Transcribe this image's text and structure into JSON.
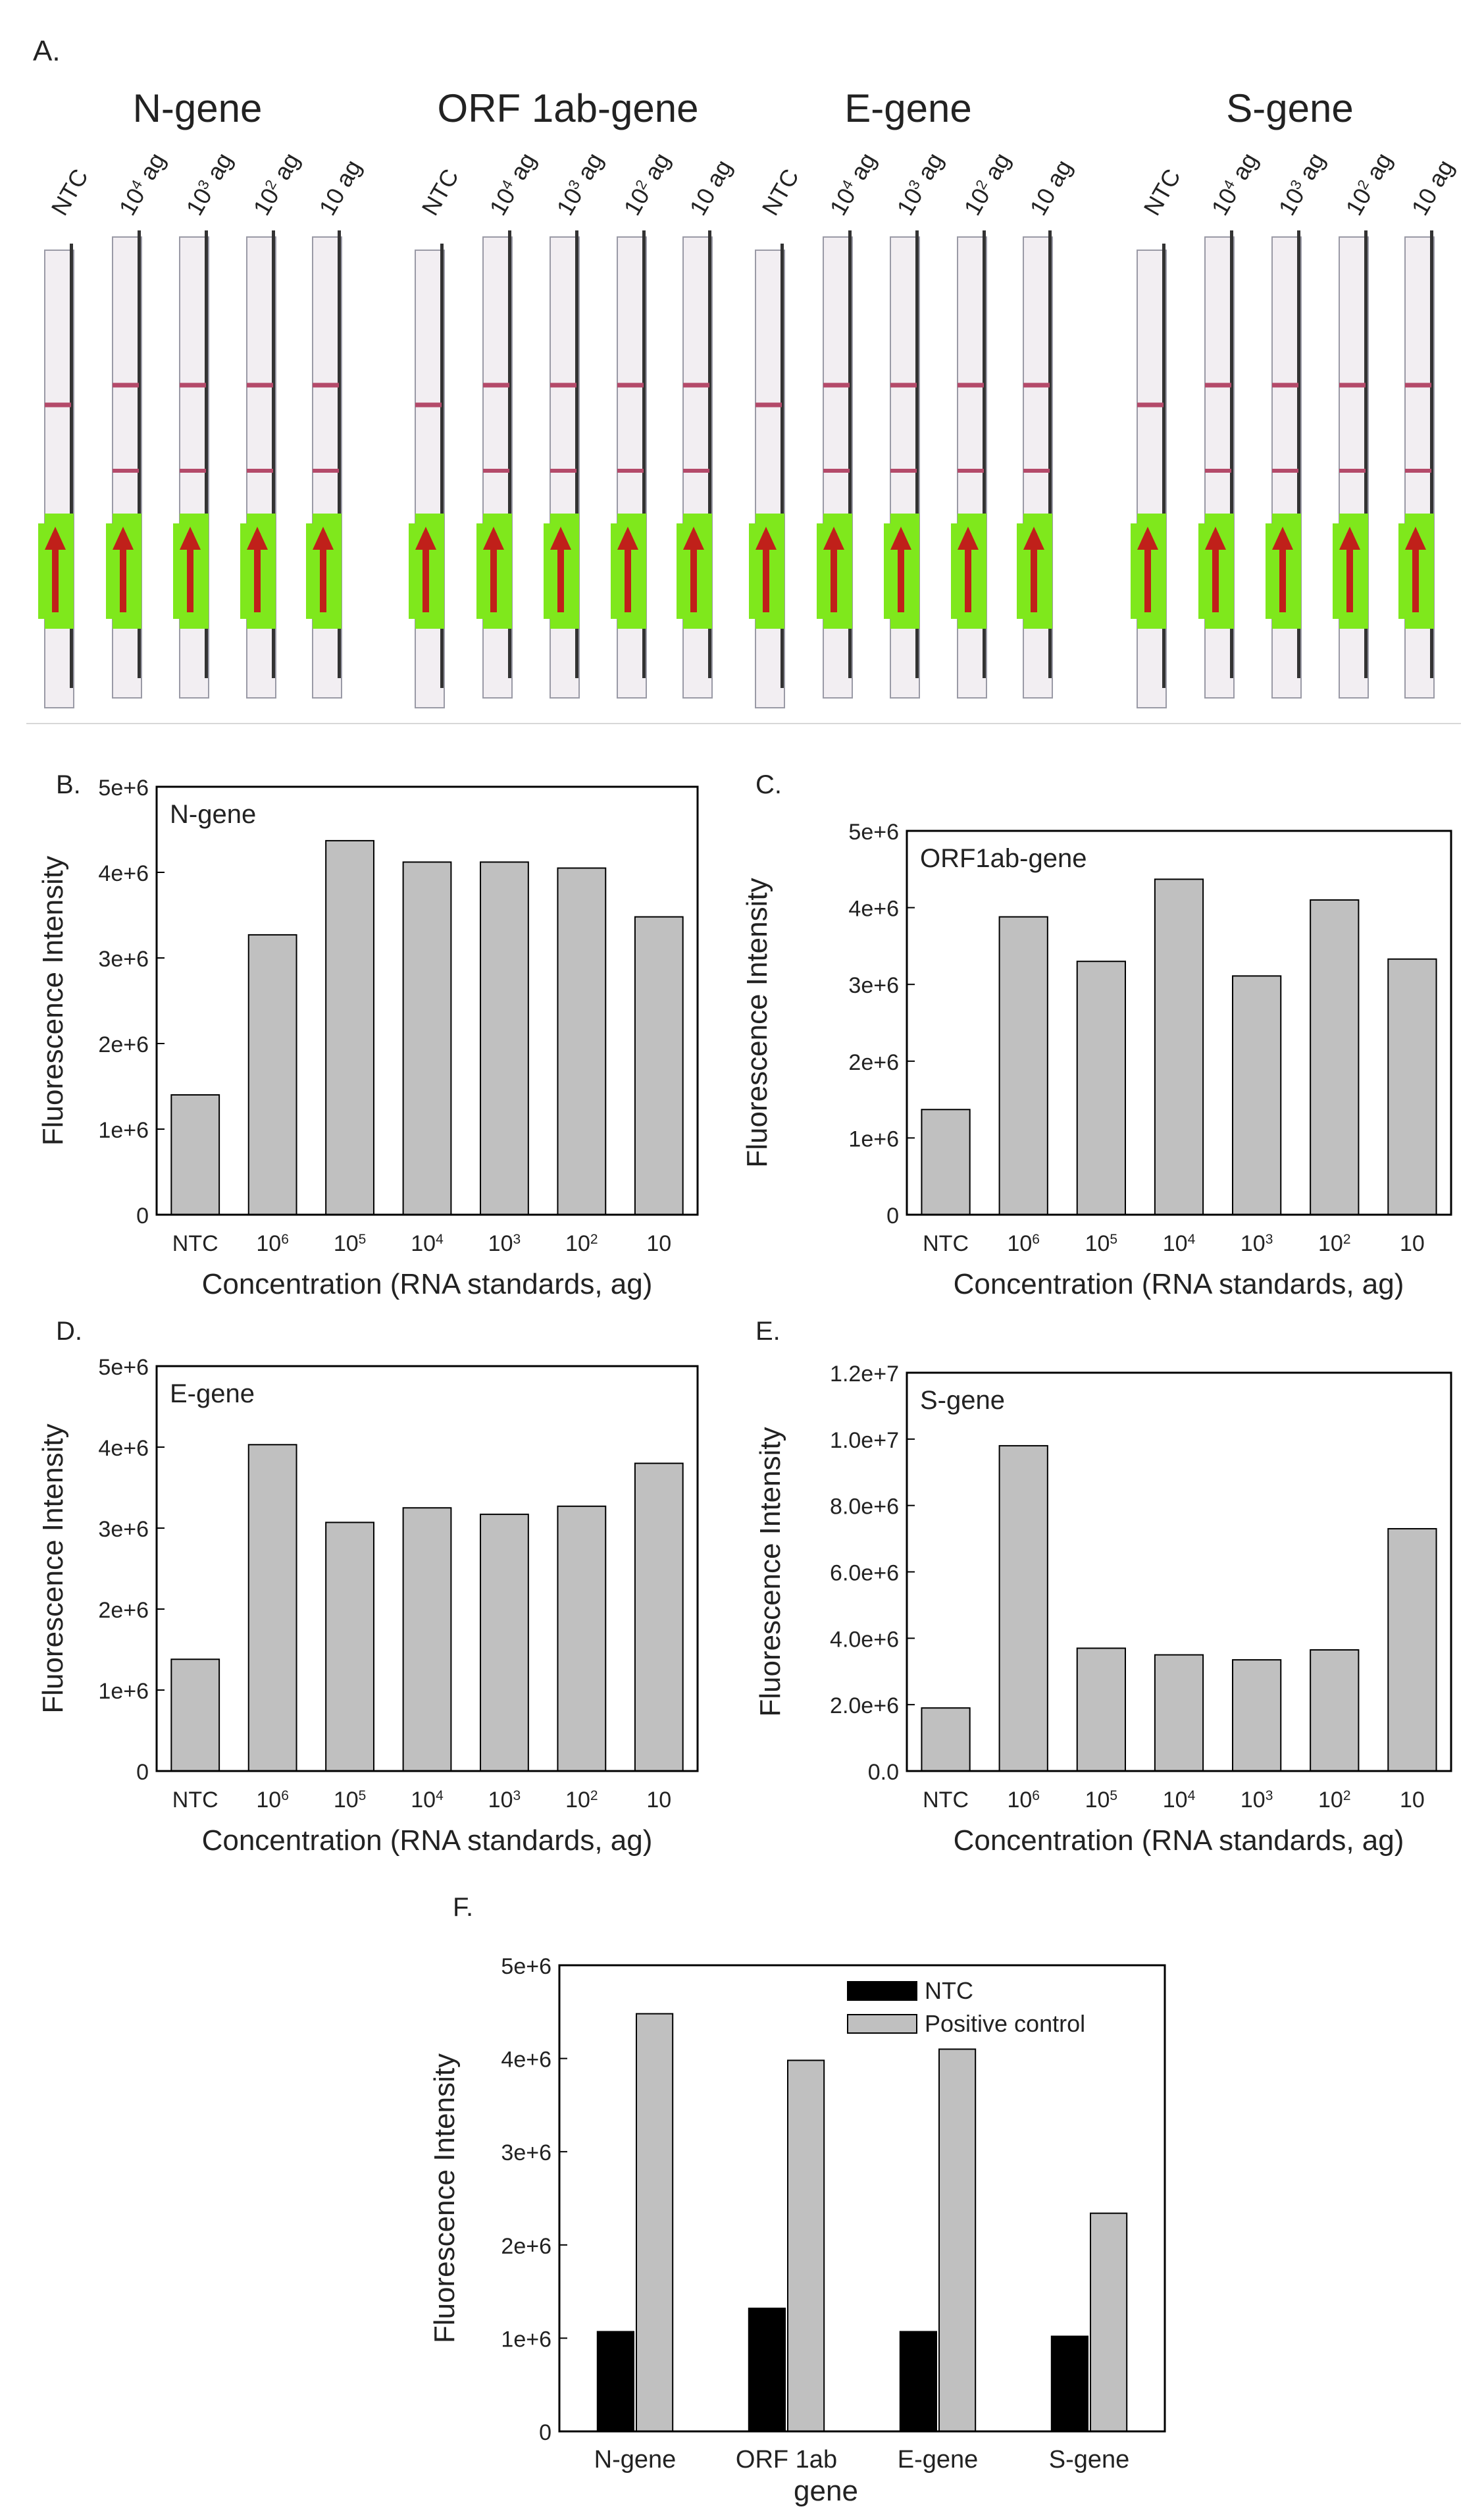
{
  "panel_labels": {
    "a": "A.",
    "b": "B.",
    "c": "C.",
    "d": "D.",
    "e": "E.",
    "f": "F."
  },
  "strips_panel": {
    "groups": [
      {
        "title": "N-gene",
        "lanes": [
          {
            "base": "NTC",
            "exp": ""
          },
          {
            "base": "10",
            "exp": "4",
            "unit": " ag"
          },
          {
            "base": "10",
            "exp": "3",
            "unit": " ag"
          },
          {
            "base": "10",
            "exp": "2",
            "unit": " ag"
          },
          {
            "base": "10 ag",
            "exp": ""
          }
        ]
      },
      {
        "title": "ORF 1ab-gene",
        "lanes": [
          {
            "base": "NTC",
            "exp": ""
          },
          {
            "base": "10",
            "exp": "4",
            "unit": " ag"
          },
          {
            "base": "10",
            "exp": "3",
            "unit": " ag"
          },
          {
            "base": "10",
            "exp": "2",
            "unit": " ag"
          },
          {
            "base": "10 ag",
            "exp": ""
          }
        ]
      },
      {
        "title": "E-gene",
        "lanes": [
          {
            "base": "NTC",
            "exp": ""
          },
          {
            "base": "10",
            "exp": "4",
            "unit": " ag"
          },
          {
            "base": "10",
            "exp": "3",
            "unit": " ag"
          },
          {
            "base": "10",
            "exp": "2",
            "unit": " ag"
          },
          {
            "base": "10 ag",
            "exp": ""
          }
        ]
      },
      {
        "title": "S-gene",
        "lanes": [
          {
            "base": "NTC",
            "exp": ""
          },
          {
            "base": "10",
            "exp": "4",
            "unit": " ag"
          },
          {
            "base": "10",
            "exp": "3",
            "unit": " ag"
          },
          {
            "base": "10",
            "exp": "2",
            "unit": " ag"
          },
          {
            "base": "10 ag",
            "exp": ""
          }
        ]
      }
    ]
  },
  "colors": {
    "bar": "#c0c0c0",
    "ntc_bar": "#000000",
    "strip_line": "#b44a6a",
    "arrow": "#c0201a",
    "green_zone": "#7fe81c"
  },
  "chart_data": [
    {
      "id": "B",
      "type": "bar",
      "title": "N-gene",
      "categories": [
        {
          "base": "NTC",
          "exp": ""
        },
        {
          "base": "10",
          "exp": "6"
        },
        {
          "base": "10",
          "exp": "5"
        },
        {
          "base": "10",
          "exp": "4"
        },
        {
          "base": "10",
          "exp": "3"
        },
        {
          "base": "10",
          "exp": "2"
        },
        {
          "base": "10",
          "exp": ""
        }
      ],
      "values": [
        1400000,
        3270000,
        4370000,
        4120000,
        4120000,
        4050000,
        3480000
      ],
      "xlabel": "Concentration (RNA standards, ag)",
      "ylabel": "Fluorescence Intensity",
      "ylim": [
        0,
        5000000
      ],
      "yticks": [
        {
          "v": 0,
          "label": "0"
        },
        {
          "v": 1000000,
          "label": "1e+6"
        },
        {
          "v": 2000000,
          "label": "2e+6"
        },
        {
          "v": 3000000,
          "label": "3e+6"
        },
        {
          "v": 4000000,
          "label": "4e+6"
        },
        {
          "v": 5000000,
          "label": "5e+6"
        }
      ]
    },
    {
      "id": "C",
      "type": "bar",
      "title": "ORF1ab-gene",
      "categories": [
        {
          "base": "NTC",
          "exp": ""
        },
        {
          "base": "10",
          "exp": "6"
        },
        {
          "base": "10",
          "exp": "5"
        },
        {
          "base": "10",
          "exp": "4"
        },
        {
          "base": "10",
          "exp": "3"
        },
        {
          "base": "10",
          "exp": "2"
        },
        {
          "base": "10",
          "exp": ""
        }
      ],
      "values": [
        1370000,
        3880000,
        3300000,
        4370000,
        3110000,
        4100000,
        3330000
      ],
      "xlabel": "Concentration (RNA standards, ag)",
      "ylabel": "Fluorescence Intensity",
      "ylim": [
        0,
        5000000
      ],
      "yticks": [
        {
          "v": 0,
          "label": "0"
        },
        {
          "v": 1000000,
          "label": "1e+6"
        },
        {
          "v": 2000000,
          "label": "2e+6"
        },
        {
          "v": 3000000,
          "label": "3e+6"
        },
        {
          "v": 4000000,
          "label": "4e+6"
        },
        {
          "v": 5000000,
          "label": "5e+6"
        }
      ]
    },
    {
      "id": "D",
      "type": "bar",
      "title": "E-gene",
      "categories": [
        {
          "base": "NTC",
          "exp": ""
        },
        {
          "base": "10",
          "exp": "6"
        },
        {
          "base": "10",
          "exp": "5"
        },
        {
          "base": "10",
          "exp": "4"
        },
        {
          "base": "10",
          "exp": "3"
        },
        {
          "base": "10",
          "exp": "2"
        },
        {
          "base": "10",
          "exp": ""
        }
      ],
      "values": [
        1380000,
        4030000,
        3070000,
        3250000,
        3170000,
        3270000,
        3800000
      ],
      "xlabel": "Concentration (RNA standards, ag)",
      "ylabel": "Fluorescence Intensity",
      "ylim": [
        0,
        5000000
      ],
      "yticks": [
        {
          "v": 0,
          "label": "0"
        },
        {
          "v": 1000000,
          "label": "1e+6"
        },
        {
          "v": 2000000,
          "label": "2e+6"
        },
        {
          "v": 3000000,
          "label": "3e+6"
        },
        {
          "v": 4000000,
          "label": "4e+6"
        },
        {
          "v": 5000000,
          "label": "5e+6"
        }
      ]
    },
    {
      "id": "E",
      "type": "bar",
      "title": "S-gene",
      "categories": [
        {
          "base": "NTC",
          "exp": ""
        },
        {
          "base": "10",
          "exp": "6"
        },
        {
          "base": "10",
          "exp": "5"
        },
        {
          "base": "10",
          "exp": "4"
        },
        {
          "base": "10",
          "exp": "3"
        },
        {
          "base": "10",
          "exp": "2"
        },
        {
          "base": "10",
          "exp": ""
        }
      ],
      "values": [
        1900000,
        9800000,
        3700000,
        3500000,
        3350000,
        3650000,
        7300000
      ],
      "xlabel": "Concentration (RNA standards, ag)",
      "ylabel": "Fluorescence Intensity",
      "ylim": [
        0,
        12000000
      ],
      "yticks": [
        {
          "v": 0,
          "label": "0.0"
        },
        {
          "v": 2000000,
          "label": "2.0e+6"
        },
        {
          "v": 4000000,
          "label": "4.0e+6"
        },
        {
          "v": 6000000,
          "label": "6.0e+6"
        },
        {
          "v": 8000000,
          "label": "8.0e+6"
        },
        {
          "v": 10000000,
          "label": "1.0e+7"
        },
        {
          "v": 12000000,
          "label": "1.2e+7"
        }
      ]
    },
    {
      "id": "F",
      "type": "bar",
      "title": "",
      "categories": [
        {
          "base": "N-gene",
          "exp": ""
        },
        {
          "base": "ORF 1ab",
          "exp": ""
        },
        {
          "base": "E-gene",
          "exp": ""
        },
        {
          "base": "S-gene",
          "exp": ""
        }
      ],
      "series": [
        {
          "name": "NTC",
          "values": [
            1070000,
            1320000,
            1070000,
            1020000
          ]
        },
        {
          "name": "Positive control",
          "values": [
            4480000,
            3980000,
            4100000,
            2340000
          ]
        }
      ],
      "legend": "top-right",
      "xlabel": "gene",
      "ylabel": "Fluorescence Intensity",
      "ylim": [
        0,
        5000000
      ],
      "yticks": [
        {
          "v": 0,
          "label": "0"
        },
        {
          "v": 1000000,
          "label": "1e+6"
        },
        {
          "v": 2000000,
          "label": "2e+6"
        },
        {
          "v": 3000000,
          "label": "3e+6"
        },
        {
          "v": 4000000,
          "label": "4e+6"
        },
        {
          "v": 5000000,
          "label": "5e+6"
        }
      ]
    }
  ]
}
